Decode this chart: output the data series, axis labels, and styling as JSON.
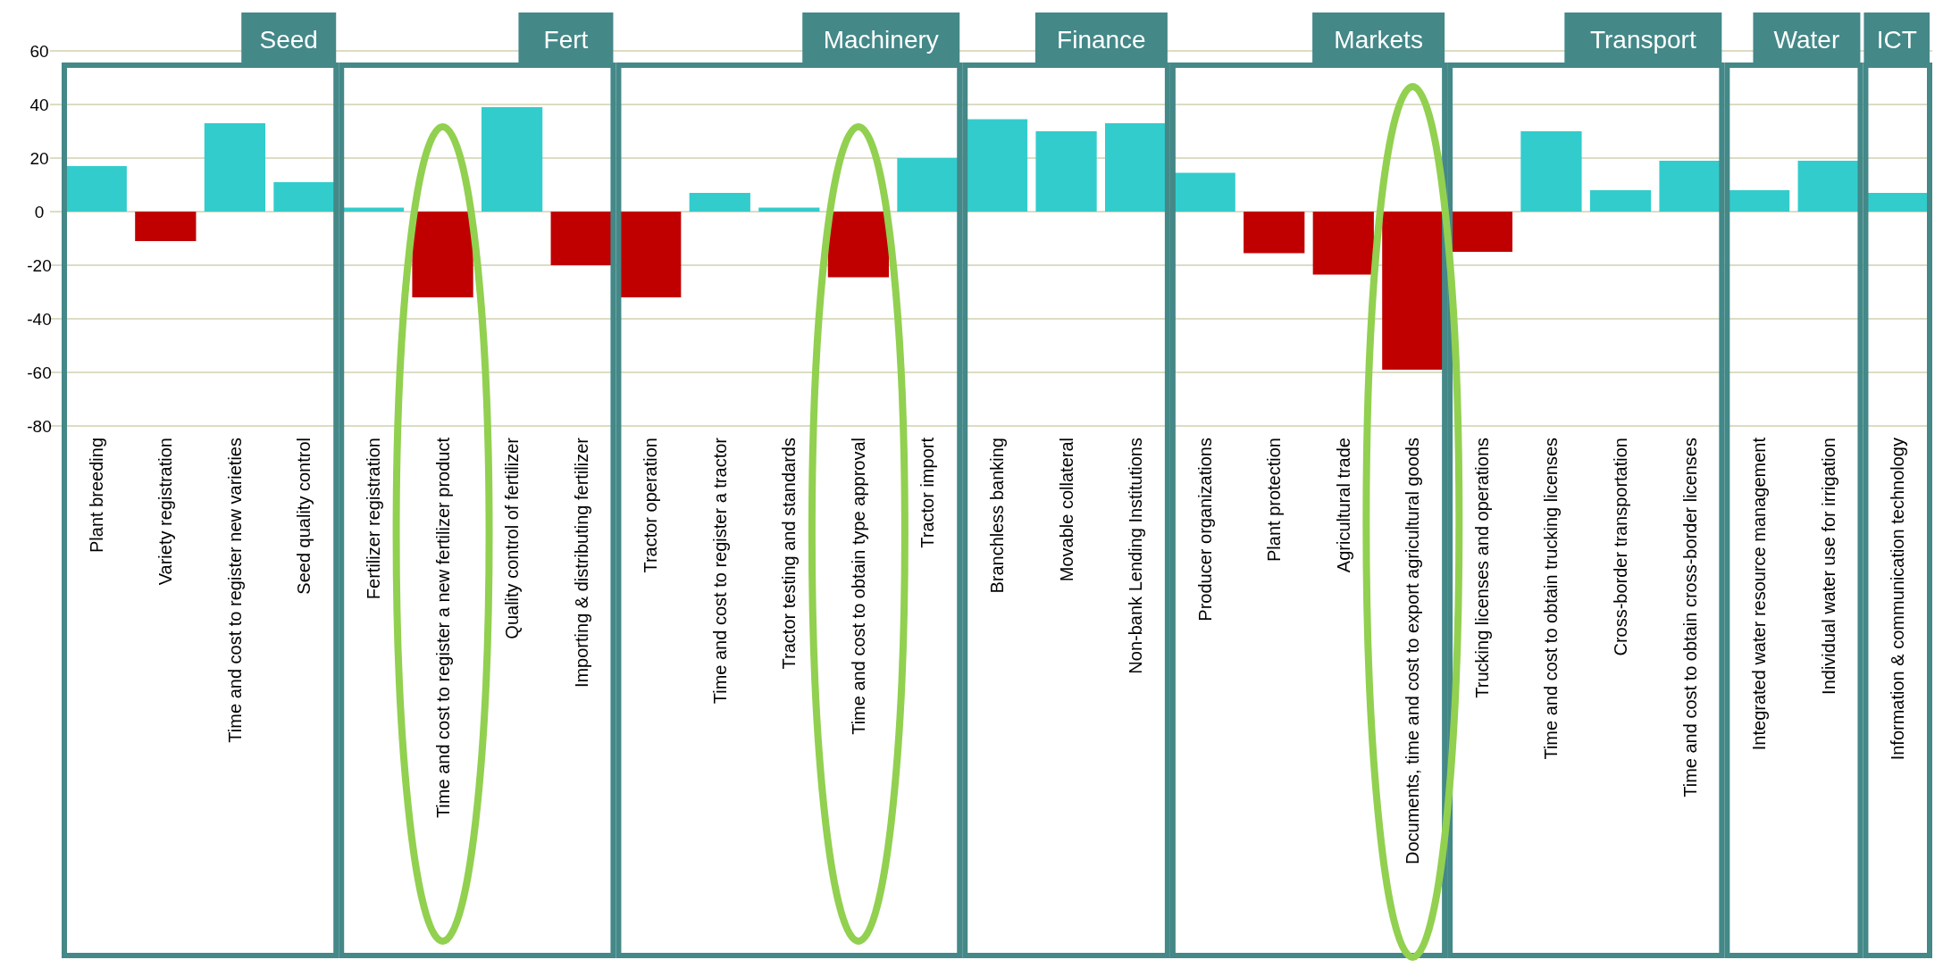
{
  "chart_data": {
    "type": "bar",
    "categories": [
      "Plant breeding",
      "Variety registration",
      "Time and cost to register new varieties",
      "Seed quality control",
      "Fertilizer registration",
      "Time and cost to register a new fertilizer product",
      "Quality control of fertilizer",
      "Importing & distributing fertilizer",
      "Tractor operation",
      "Time and cost to register a tractor",
      "Tractor testing and standards",
      "Time and cost to obtain type approval",
      "Tractor import",
      "Branchless banking",
      "Movable collateral",
      "Non-bank Lending Institutions",
      "Producer organizations",
      "Plant protection",
      "Agricultural trade",
      "Documents, time and cost to export agricultural goods",
      "Trucking licenses and operations",
      "Time and cost to obtain trucking licenses",
      "Cross-border transportation",
      "Time and cost to obtain cross-border licenses",
      "Integrated water resource management",
      "Individual water use for irrigation",
      "Information & communication technology"
    ],
    "values": [
      17,
      -11,
      33,
      11,
      1.5,
      -32,
      39,
      -20,
      -32,
      7,
      1.5,
      -24.5,
      20,
      34.5,
      30,
      33,
      14.5,
      -15.5,
      -23.5,
      -59,
      -15,
      30,
      8,
      19,
      8,
      19,
      7
    ],
    "colors": [
      "#33cccc",
      "#c00000",
      "#33cccc",
      "#33cccc",
      "#33cccc",
      "#c00000",
      "#33cccc",
      "#c00000",
      "#c00000",
      "#33cccc",
      "#33cccc",
      "#c00000",
      "#33cccc",
      "#33cccc",
      "#33cccc",
      "#33cccc",
      "#33cccc",
      "#c00000",
      "#c00000",
      "#c00000",
      "#c00000",
      "#33cccc",
      "#33cccc",
      "#33cccc",
      "#33cccc",
      "#33cccc",
      "#33cccc"
    ],
    "ylim": [
      -80,
      60
    ],
    "yticks": [
      -80,
      -60,
      -40,
      -20,
      0,
      20,
      40,
      60
    ],
    "grid": "y",
    "annotations": [
      "Seed",
      "Fert",
      "Machinery",
      "Finance",
      "Markets",
      "Transport",
      "Water",
      "ICT"
    ]
  }
}
